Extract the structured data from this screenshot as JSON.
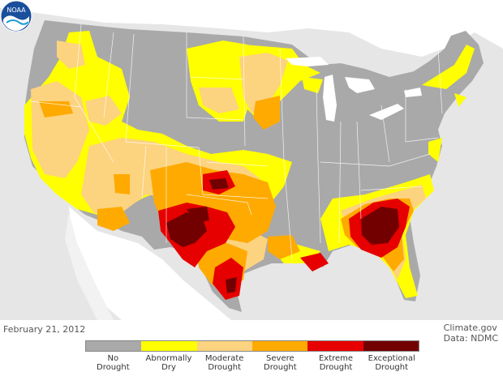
{
  "date": "February 21, 2012",
  "credit": {
    "site": "Climate.gov",
    "data": "Data: NDMC"
  },
  "logo_text": "NOAA",
  "legend": [
    {
      "line1": "No",
      "line2": "Drought",
      "color": "#a9a9a9"
    },
    {
      "line1": "Abnormally",
      "line2": "Dry",
      "color": "#ffff00"
    },
    {
      "line1": "Moderate",
      "line2": "Drought",
      "color": "#fcd37f"
    },
    {
      "line1": "Severe",
      "line2": "Drought",
      "color": "#ffaa00"
    },
    {
      "line1": "Extreme",
      "line2": "Drought",
      "color": "#e60000"
    },
    {
      "line1": "Exceptional",
      "line2": "Drought",
      "color": "#730000"
    }
  ],
  "colors": {
    "background": "#e6e6e6",
    "land_outside": "#ffffff",
    "no_drought": "#a9a9a9",
    "state_border": "#ffffff",
    "lakes": "#ffffff"
  }
}
